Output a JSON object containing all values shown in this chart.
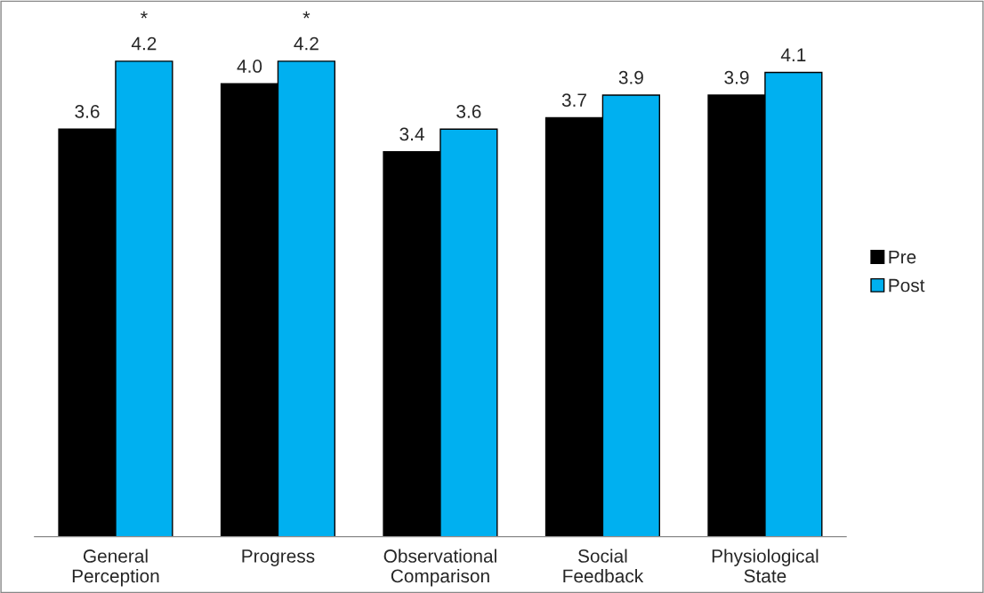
{
  "chart_data": {
    "type": "bar",
    "categories": [
      "General\nPerception",
      "Progress",
      "Observational\nComparison",
      "Social\nFeedback",
      "Physiological\nState"
    ],
    "series": [
      {
        "name": "Pre",
        "color": "#000000",
        "values": [
          3.6,
          4.0,
          3.4,
          3.7,
          3.9
        ],
        "value_labels": [
          "3.6",
          "4.0",
          "3.4",
          "3.7",
          "3.9"
        ]
      },
      {
        "name": "Post",
        "color": "#00b0f0",
        "values": [
          4.2,
          4.2,
          3.6,
          3.9,
          4.1
        ],
        "value_labels": [
          "4.2",
          "4.2",
          "3.6",
          "3.9",
          "4.1"
        ]
      }
    ],
    "grid": false,
    "legend": "right",
    "annotations": [
      {
        "text": "*",
        "x": "General\nPerception",
        "y": 4.2
      },
      {
        "text": "*",
        "x": "Progress",
        "y": 4.2
      }
    ]
  }
}
